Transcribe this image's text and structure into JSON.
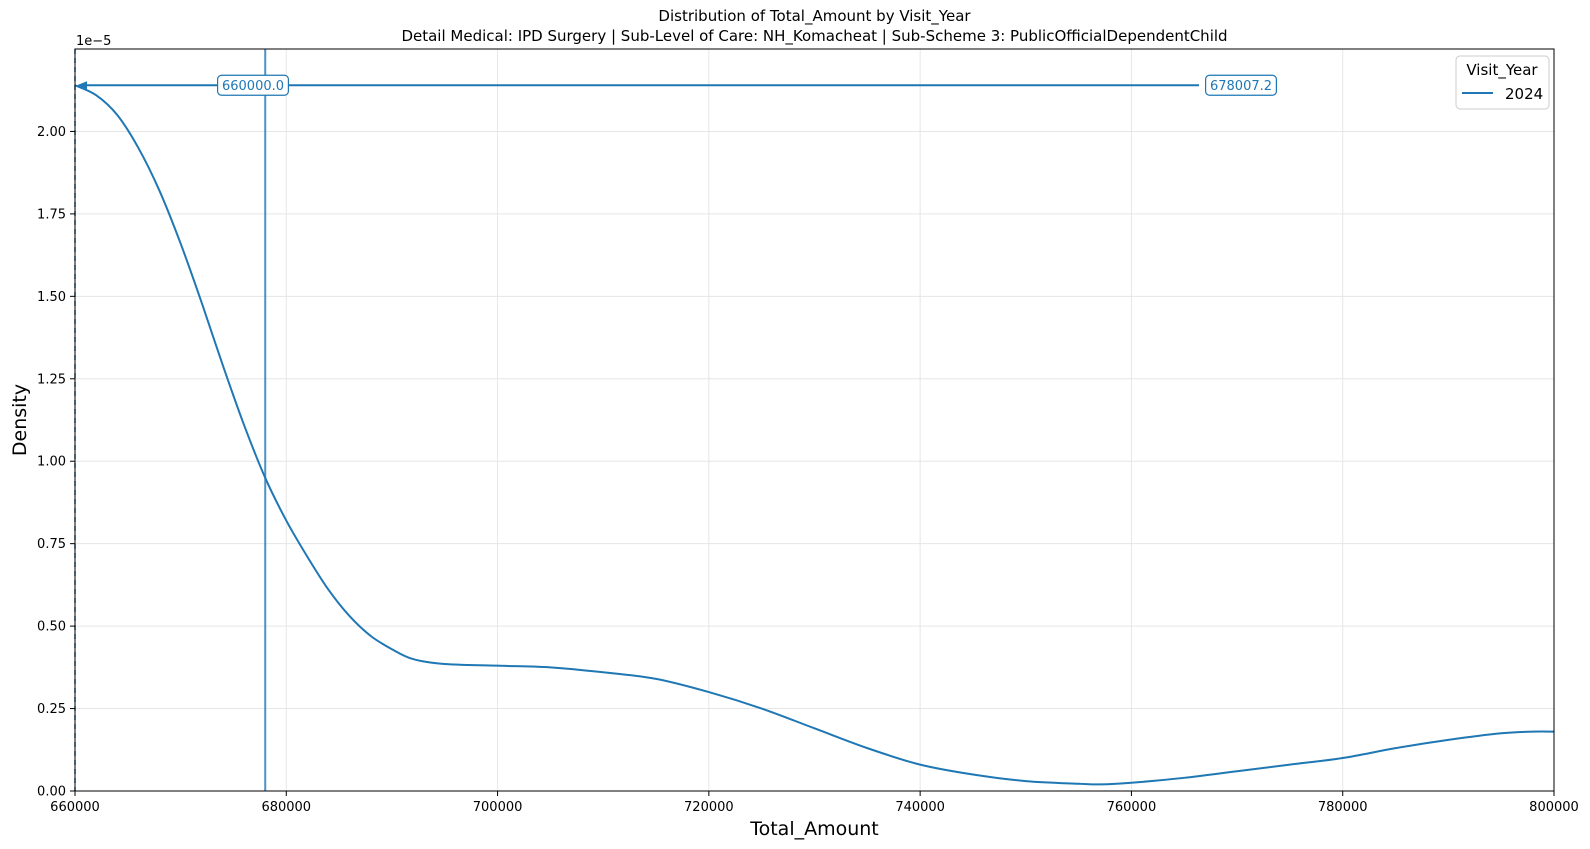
{
  "chart_data": {
    "type": "line",
    "title": "Distribution of Total_Amount by Visit_Year",
    "subtitle": "Detail Medical: IPD Surgery | Sub-Level of Care: NH_Komacheat | Sub-Scheme 3: PublicOfficialDependentChild",
    "xlabel": "Total_Amount",
    "ylabel": "Density",
    "y_offset_label": "1e−5",
    "xlim": [
      660000,
      800000
    ],
    "ylim": [
      0,
      2.25
    ],
    "xticks": [
      660000,
      680000,
      700000,
      720000,
      740000,
      760000,
      780000,
      800000
    ],
    "xtick_labels": [
      "660000",
      "680000",
      "700000",
      "720000",
      "740000",
      "760000",
      "780000",
      "800000"
    ],
    "yticks": [
      0,
      0.25,
      0.5,
      0.75,
      1.0,
      1.25,
      1.5,
      1.75,
      2.0
    ],
    "ytick_labels": [
      "0.00",
      "0.25",
      "0.50",
      "0.75",
      "1.00",
      "1.25",
      "1.50",
      "1.75",
      "2.00"
    ],
    "grid": true,
    "legend": {
      "title": "Visit_Year",
      "position": "top-right"
    },
    "colors": {
      "series": "#1f77b4"
    },
    "series": [
      {
        "name": "2024",
        "x": [
          660000,
          662000,
          664000,
          666000,
          668000,
          670000,
          672000,
          674000,
          676000,
          678000,
          680000,
          682000,
          684000,
          686000,
          688000,
          690000,
          692000,
          695000,
          700000,
          705000,
          710000,
          715000,
          720000,
          725000,
          730000,
          735000,
          740000,
          745000,
          750000,
          755000,
          757000,
          760000,
          765000,
          770000,
          775000,
          780000,
          785000,
          790000,
          795000,
          798000,
          800000
        ],
        "values": [
          2.14,
          2.11,
          2.05,
          1.95,
          1.82,
          1.66,
          1.48,
          1.29,
          1.11,
          0.95,
          0.82,
          0.71,
          0.61,
          0.53,
          0.47,
          0.43,
          0.4,
          0.385,
          0.38,
          0.375,
          0.36,
          0.34,
          0.3,
          0.25,
          0.19,
          0.13,
          0.08,
          0.05,
          0.03,
          0.022,
          0.02,
          0.025,
          0.04,
          0.06,
          0.08,
          0.1,
          0.13,
          0.155,
          0.175,
          0.18,
          0.18
        ]
      }
    ],
    "annotations": [
      {
        "label": "660000.0",
        "x": 660000,
        "y": 2.14,
        "style": "dashed-vline",
        "arrow_to_x": 660000
      },
      {
        "label": "678007.2",
        "x": 678007.2,
        "y": 2.14,
        "style": "solid-vline"
      }
    ]
  }
}
